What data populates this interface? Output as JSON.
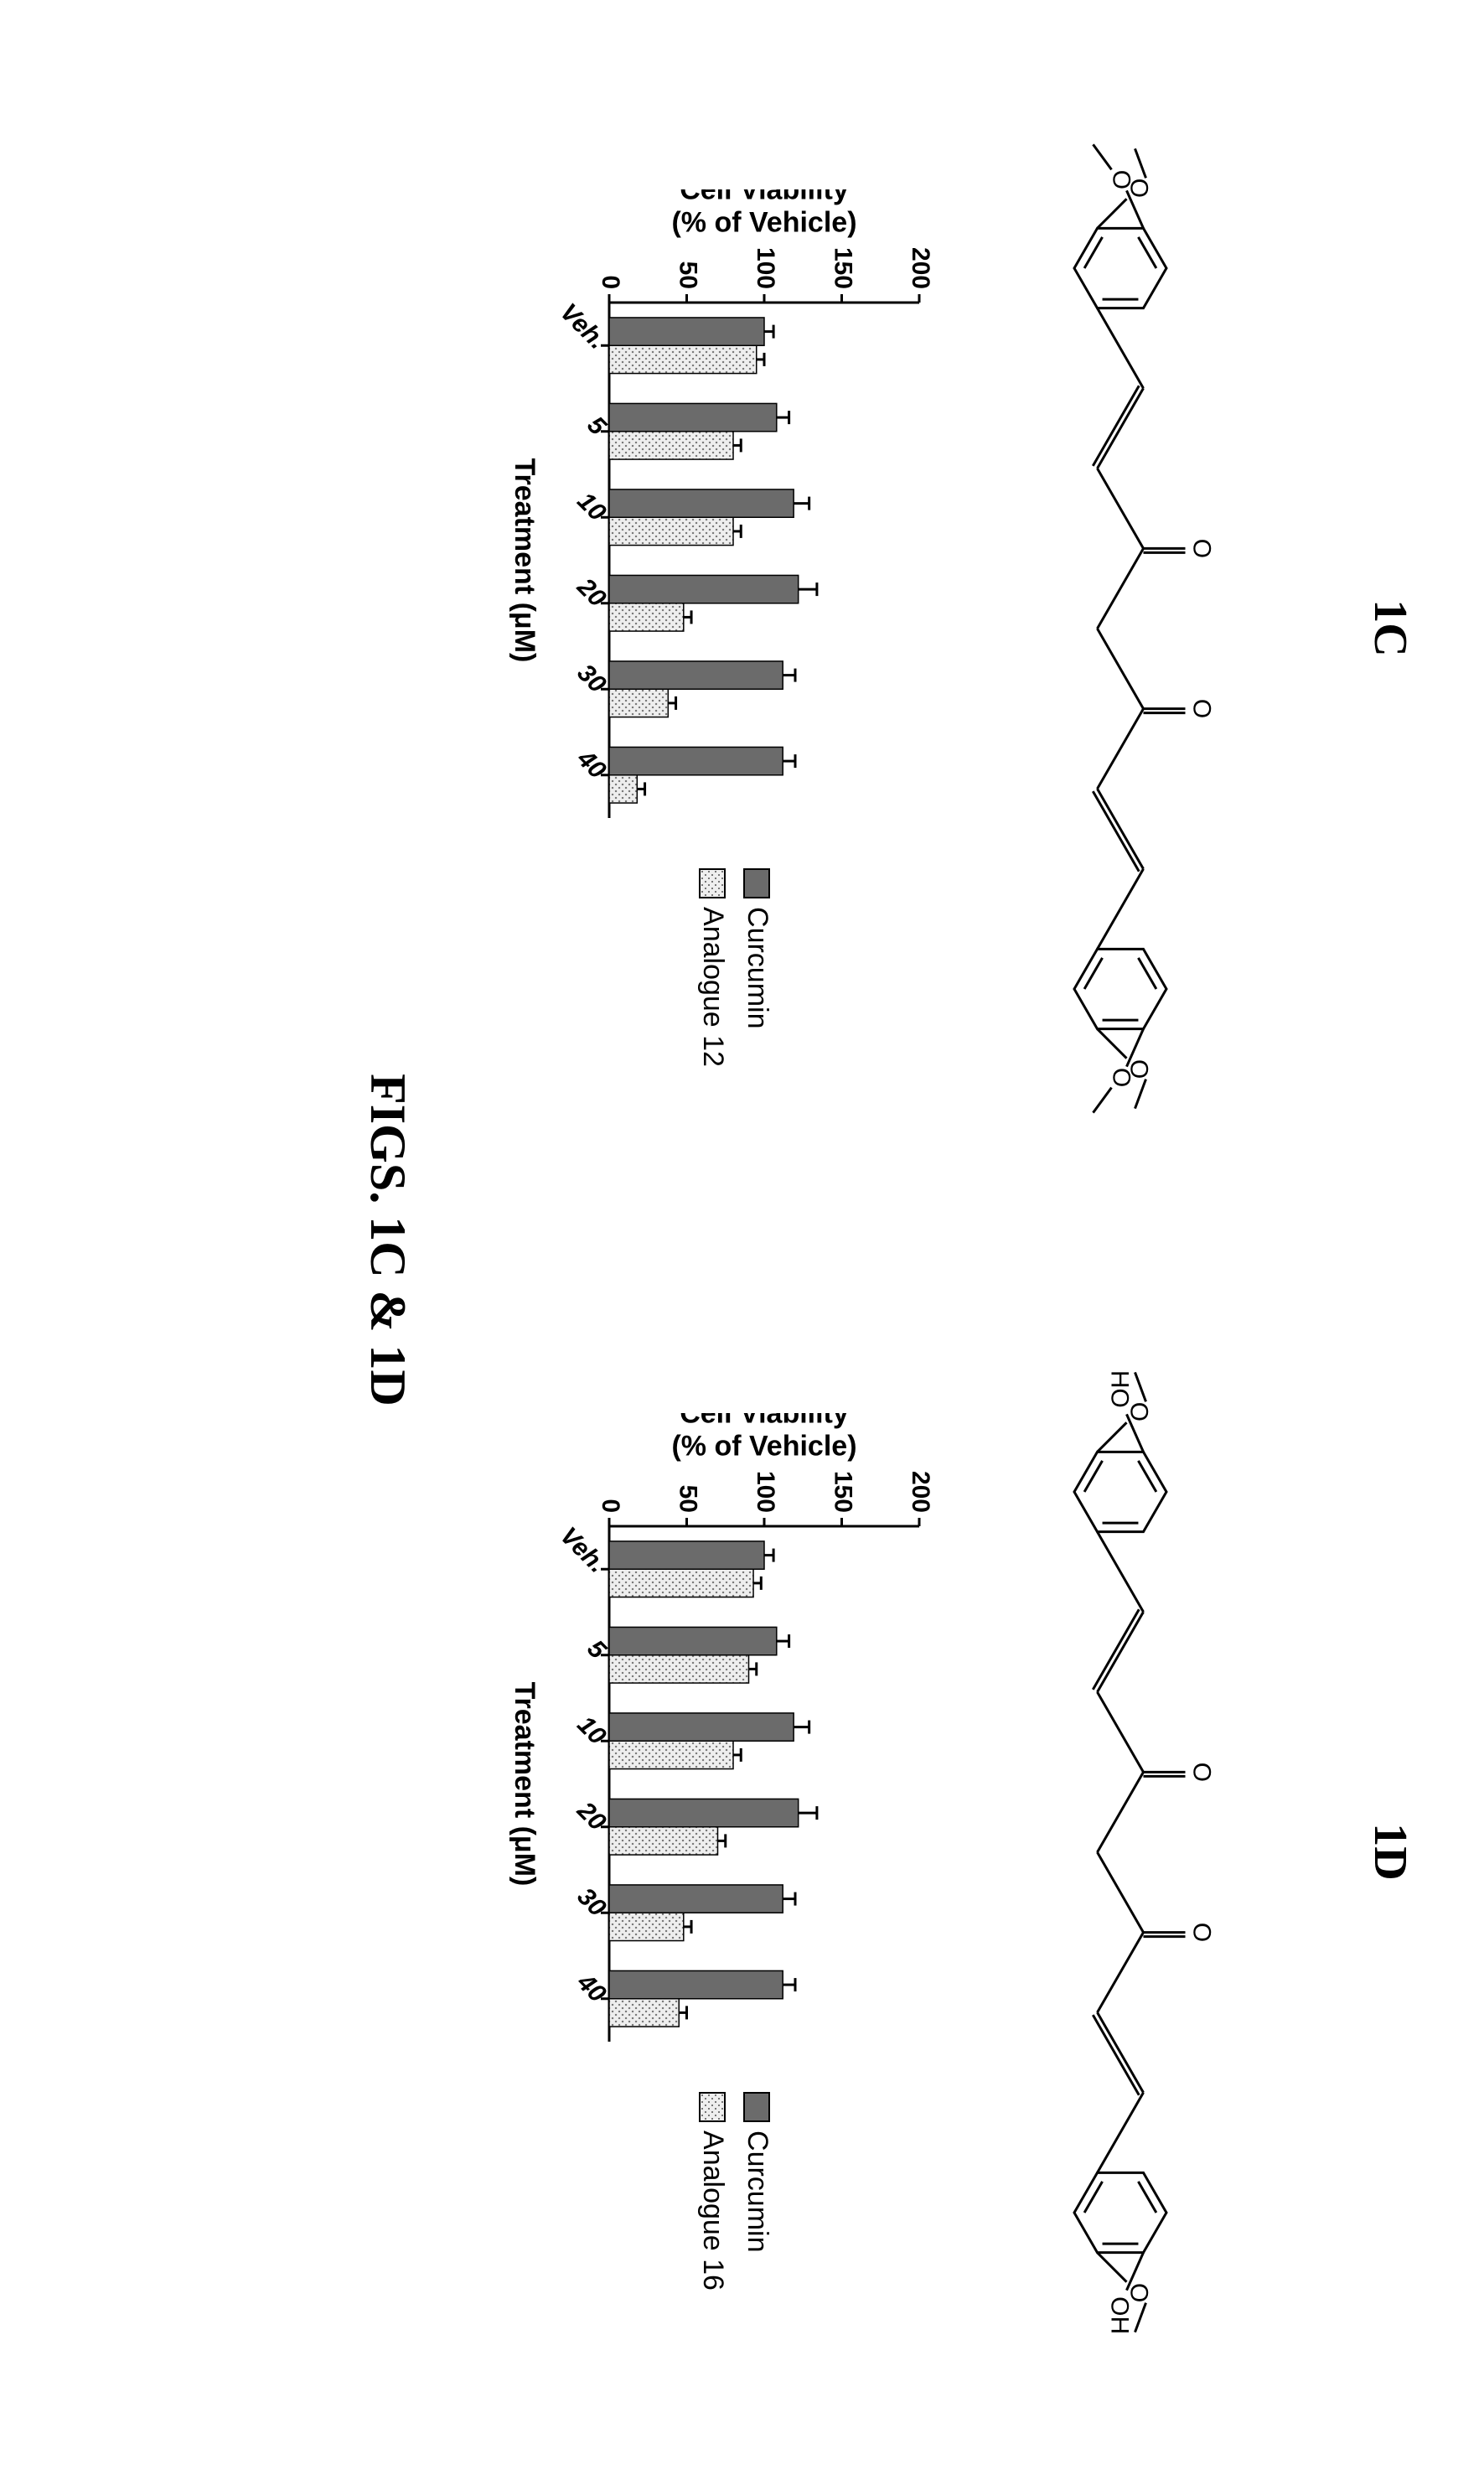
{
  "caption": "FIGS. 1C & 1D",
  "panel_c": {
    "label": "1C",
    "molecule": {
      "substituents_left": [
        "O",
        "O"
      ],
      "substituents_right": [
        "O",
        "O"
      ],
      "left_sub_groups": [
        "",
        ""
      ],
      "right_sub_groups": [
        "",
        ""
      ],
      "central_ketones": [
        "O",
        "O"
      ],
      "bond_color": "#000000",
      "bond_width": 3
    },
    "chart": {
      "type": "bar",
      "ylabel_line1": "Cell Viability",
      "ylabel_line2": "(%  of Vehicle)",
      "xlabel": "Treatment (μM)",
      "ylim": [
        0,
        200
      ],
      "yticks": [
        0,
        50,
        100,
        150,
        200
      ],
      "categories": [
        "Veh.",
        "5",
        "10",
        "20",
        "30",
        "40"
      ],
      "series": [
        {
          "name": "Curcumin",
          "fill": "#6b6b6b",
          "pattern": "none",
          "values": [
            100,
            108,
            119,
            122,
            112,
            112
          ],
          "errors": [
            6,
            8,
            10,
            12,
            8,
            8
          ]
        },
        {
          "name": "Analogue 12",
          "fill": "#dcdcdc",
          "pattern": "dots",
          "values": [
            95,
            80,
            80,
            48,
            38,
            18
          ],
          "errors": [
            5,
            5,
            5,
            5,
            5,
            5
          ]
        }
      ],
      "axis_color": "#000000",
      "axis_width": 3,
      "tick_fontsize": 30,
      "label_fontsize": 34,
      "bar_group_gap": 0.35,
      "bar_inner_gap": 0.0,
      "background": "#ffffff"
    },
    "legend": [
      {
        "label": "Curcumin",
        "fill": "#6b6b6b",
        "pattern": "none"
      },
      {
        "label": "Analogue 12",
        "fill": "#dcdcdc",
        "pattern": "dots"
      }
    ]
  },
  "panel_d": {
    "label": "1D",
    "molecule": {
      "substituents_left": [
        "O",
        "HO"
      ],
      "substituents_right": [
        "O",
        "OH"
      ],
      "central_ketones": [
        "O",
        "O"
      ],
      "bond_color": "#000000",
      "bond_width": 3
    },
    "chart": {
      "type": "bar",
      "ylabel_line1": "Cell Viability",
      "ylabel_line2": "(%  of Vehicle)",
      "xlabel": "Treatment (μM)",
      "ylim": [
        0,
        200
      ],
      "yticks": [
        0,
        50,
        100,
        150,
        200
      ],
      "categories": [
        "Veh.",
        "5",
        "10",
        "20",
        "30",
        "40"
      ],
      "series": [
        {
          "name": "Curcumin",
          "fill": "#6b6b6b",
          "pattern": "none",
          "values": [
            100,
            108,
            119,
            122,
            112,
            112
          ],
          "errors": [
            6,
            8,
            10,
            12,
            8,
            8
          ]
        },
        {
          "name": "Analogue 16",
          "fill": "#dcdcdc",
          "pattern": "dots",
          "values": [
            93,
            90,
            80,
            70,
            48,
            45
          ],
          "errors": [
            5,
            5,
            5,
            5,
            5,
            5
          ]
        }
      ],
      "axis_color": "#000000",
      "axis_width": 3,
      "tick_fontsize": 30,
      "label_fontsize": 34,
      "bar_group_gap": 0.35,
      "bar_inner_gap": 0.0,
      "background": "#ffffff"
    },
    "legend": [
      {
        "label": "Curcumin",
        "fill": "#6b6b6b",
        "pattern": "none"
      },
      {
        "label": "Analogue 16",
        "fill": "#dcdcdc",
        "pattern": "dots"
      }
    ]
  }
}
